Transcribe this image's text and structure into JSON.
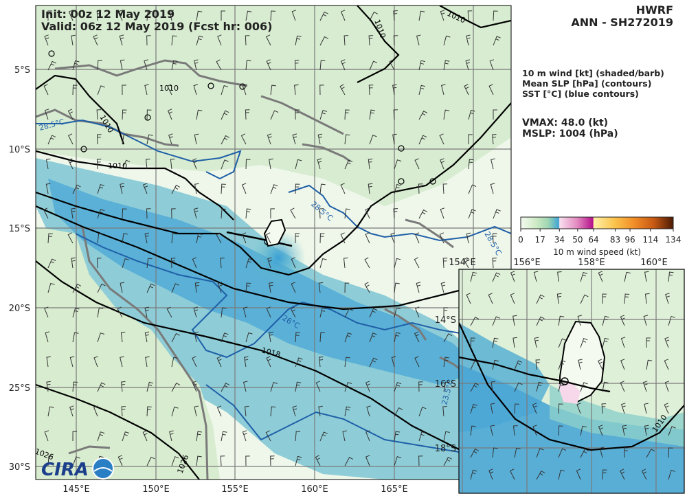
{
  "header": {
    "init": "Init:   00z 12 May 2019",
    "valid": "Valid: 06z 12 May 2019 (Fcst hr: 006)",
    "model": "HWRF",
    "storm": "ANN - SH272019"
  },
  "legend": {
    "line1": "10 m wind [kt] (shaded/barb)",
    "line2": "Mean SLP [hPa] (contours)",
    "line3": "SST [°C] (blue contours)",
    "vmax": "VMAX:  48.0 (kt)",
    "mslp": "MSLP: 1004 (hPa)"
  },
  "colorbar": {
    "ticks": [
      "0",
      "17",
      "34",
      "50",
      "64",
      "83",
      "96",
      "114",
      "134"
    ],
    "label": "10 m wind speed (kt)",
    "colors": [
      "#f4faf0",
      "#cfeac6",
      "#9fd6b2",
      "#6cc0c8",
      "#3fa6d4",
      "#f9e0ef",
      "#e38ac0",
      "#b4108a",
      "#fff0a8",
      "#fbc24a",
      "#f08a26",
      "#c85a14",
      "#7a2c08",
      "#4a1a04"
    ]
  },
  "main_map": {
    "lat_labels": [
      "5°S",
      "10°S",
      "15°S",
      "20°S",
      "25°S",
      "30°S"
    ],
    "lon_labels": [
      "145°E",
      "150°E",
      "155°E",
      "160°E",
      "165°E"
    ],
    "contour_labels": [
      "1010",
      "1010",
      "1010",
      "1010",
      "1010",
      "1018",
      "1026",
      "1026",
      "28.5°C",
      "28.5°C",
      "28.5°C",
      "26°C",
      "23.5°C"
    ],
    "ocean_color": "#5fb6d8",
    "land_color": "#e8f3e2",
    "slp_color": "#000000",
    "sst_color": "#1f5fa8",
    "coast_color": "#7a7a7a"
  },
  "inset_map": {
    "lon_labels": [
      "154°E",
      "156°E",
      "158°E",
      "160°E"
    ],
    "lat_labels": [
      "14°S",
      "16°S",
      "18°S"
    ],
    "contour_labels": [
      "1010"
    ]
  },
  "logo": {
    "text": "CIRA"
  }
}
